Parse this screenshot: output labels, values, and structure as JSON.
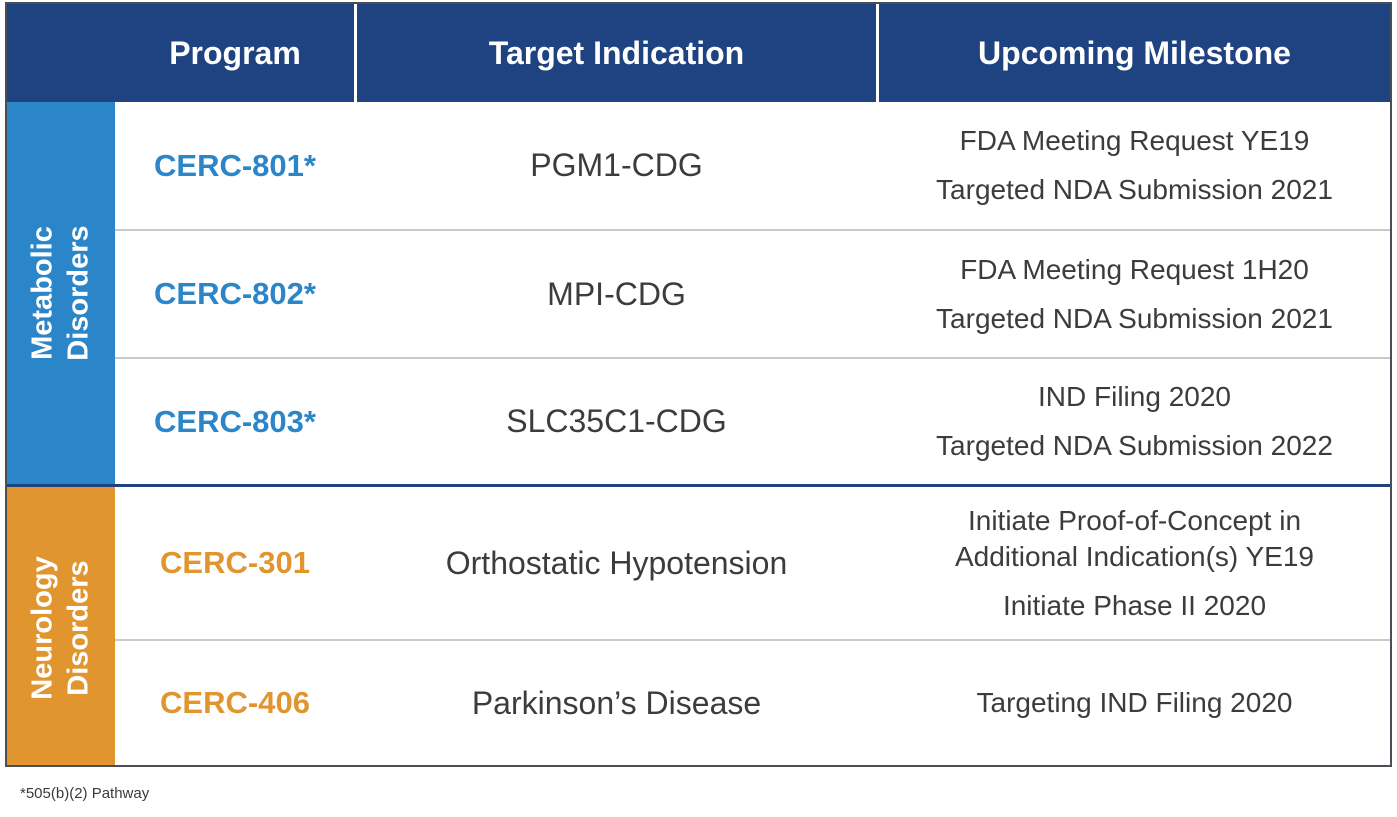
{
  "header": {
    "program": "Program",
    "indication": "Target Indication",
    "milestone": "Upcoming Milestone"
  },
  "groups": {
    "metabolic": {
      "line1": "Metabolic",
      "line2": "Disorders",
      "color": "#2a86c8"
    },
    "neurology": {
      "line1": "Neurology",
      "line2": "Disorders",
      "color": "#e0952f"
    }
  },
  "rows": [
    {
      "program": "CERC-801*",
      "indication": "PGM1-CDG",
      "milestones": [
        "FDA Meeting Request YE19",
        "Targeted NDA Submission 2021"
      ]
    },
    {
      "program": "CERC-802*",
      "indication": "MPI-CDG",
      "milestones": [
        "FDA Meeting Request 1H20",
        "Targeted NDA Submission 2021"
      ]
    },
    {
      "program": "CERC-803*",
      "indication": "SLC35C1-CDG",
      "milestones": [
        "IND Filing 2020",
        "Targeted NDA Submission 2022"
      ]
    },
    {
      "program": "CERC-301",
      "indication": "Orthostatic Hypotension",
      "milestones": [
        "Initiate Proof-of-Concept in",
        "Additional Indication(s) YE19",
        "Initiate Phase II 2020"
      ]
    },
    {
      "program": "CERC-406",
      "indication": "Parkinson’s Disease",
      "milestones": [
        "Targeting IND Filing 2020"
      ]
    }
  ],
  "footnote": "*505(b)(2) Pathway",
  "colors": {
    "header": "#1f4380",
    "blue": "#2a86c8",
    "orange": "#e0952f"
  }
}
